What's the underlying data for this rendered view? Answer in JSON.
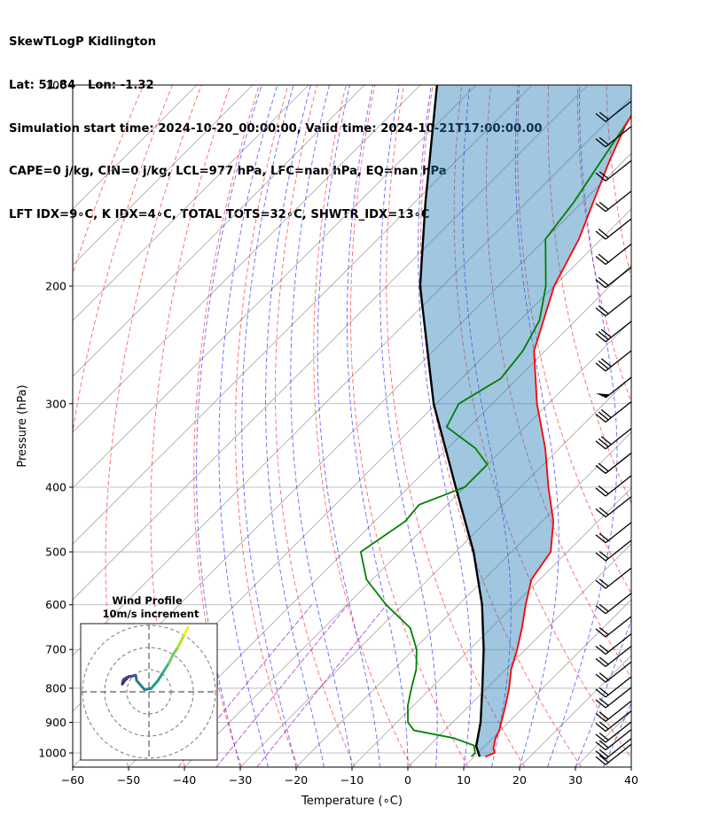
{
  "header": {
    "line1": "SkewTLogP Kidlington",
    "line2": "Lat: 51.84   Lon: -1.32",
    "line3": "Simulation start time: 2024-10-20_00:00:00, Valid time: 2024-10-21T17:00:00.00",
    "line4": "CAPE=0 j/kg, CIN=0 j/kg, LCL=977 hPa, LFC=nan hPa, EQ=nan hPa",
    "line5": "LFT IDX=9∘C, K IDX=4∘C, TOTAL TOTS=32∘C, SHWTR_IDX=13∘C"
  },
  "chart_data": {
    "type": "line",
    "subtype": "skew-T log-P",
    "xlabel": "Temperature (∘C)",
    "ylabel": "Pressure (hPa)",
    "xlim": [
      -60,
      40
    ],
    "ylim": [
      1050,
      100
    ],
    "y_scale": "log",
    "grid": true,
    "x_ticks": [
      "−60",
      "−50",
      "−40",
      "−30",
      "−20",
      "−10",
      "0",
      "10",
      "20",
      "30",
      "40"
    ],
    "y_ticks": [
      "100",
      "200",
      "300",
      "400",
      "500",
      "600",
      "700",
      "800",
      "900",
      "1000"
    ],
    "colors": {
      "temperature": "#ff0000",
      "dewpoint": "#008000",
      "parcel": "#000000",
      "cin_cape_shade": "#1f77b4",
      "dry_adiabat": "#ff0000",
      "moist_adiabat": "#0000ff",
      "mixing_ratio": "#9900cc",
      "isotherm": "#888888"
    },
    "series": [
      {
        "key": "temperature",
        "pressure": [
          1013,
          1000,
          985,
          950,
          925,
          900,
          850,
          800,
          750,
          700,
          650,
          600,
          550,
          500,
          450,
          400,
          350,
          300,
          250,
          200,
          170,
          150,
          130,
          115,
          100
        ],
        "temp": [
          12,
          13,
          12,
          10.5,
          9.8,
          8.7,
          6.5,
          4.0,
          1.0,
          -1.5,
          -4.5,
          -8.0,
          -11.5,
          -13.0,
          -18.0,
          -25.0,
          -32.5,
          -42.0,
          -52.0,
          -60.0,
          -64.0,
          -68.0,
          -72.5,
          -76.0,
          -79.0
        ]
      },
      {
        "key": "dewpoint",
        "pressure": [
          1013,
          1000,
          975,
          950,
          925,
          900,
          850,
          800,
          750,
          700,
          650,
          600,
          550,
          500,
          450,
          425,
          400,
          370,
          350,
          325,
          300,
          275,
          250,
          225,
          200,
          180,
          170,
          150,
          130,
          100
        ],
        "temp": [
          9.5,
          9.5,
          8.0,
          3.0,
          -5.5,
          -8.0,
          -11.0,
          -13.5,
          -16.0,
          -19.5,
          -24.5,
          -33.0,
          -41.0,
          -47.0,
          -44.5,
          -45.0,
          -40.0,
          -40.0,
          -45.0,
          -54.0,
          -56.0,
          -53.0,
          -54.0,
          -56.5,
          -61.5,
          -67.0,
          -70.0,
          -71.5,
          -74.0,
          -78.5
        ]
      },
      {
        "key": "parcel",
        "pressure": [
          1013,
          977,
          900,
          800,
          700,
          600,
          500,
          400,
          300,
          200,
          150,
          100
        ],
        "temp": [
          11.0,
          8.5,
          5.0,
          -0.8,
          -7.5,
          -15.8,
          -26.8,
          -41.6,
          -60.5,
          -84.0,
          -98.0,
          -117.0
        ]
      }
    ],
    "wind_barbs": {
      "pressure": [
        1010,
        990,
        960,
        935,
        900,
        870,
        830,
        800,
        760,
        720,
        690,
        650,
        600,
        550,
        500,
        470,
        430,
        400,
        370,
        340,
        310,
        285,
        260,
        235,
        215,
        195,
        180,
        165,
        150,
        135,
        120,
        110
      ],
      "full_barbs": [
        1,
        1,
        1,
        1,
        1,
        1,
        1,
        1,
        1,
        1,
        1,
        1,
        1,
        1,
        1,
        1,
        1,
        2,
        2,
        3,
        3,
        0,
        3,
        3,
        2,
        2,
        2,
        2,
        1,
        1,
        1,
        1
      ],
      "pennants": [
        0,
        0,
        0,
        0,
        0,
        0,
        0,
        0,
        0,
        0,
        0,
        0,
        0,
        0,
        0,
        0,
        0,
        0,
        0,
        0,
        0,
        1,
        0,
        0,
        0,
        0,
        0,
        0,
        0,
        0,
        0,
        0
      ]
    },
    "hodograph": {
      "title": "Wind Profile",
      "subtitle": "10m/s increment",
      "ring_speeds_ms": [
        10,
        20,
        30
      ],
      "u": [
        -9,
        -10,
        -11,
        -12,
        -11.5,
        -10,
        -6,
        -5.5,
        -2,
        1,
        4,
        6.5,
        9,
        11,
        13,
        15,
        16,
        17.5
      ],
      "v": [
        7,
        6,
        5,
        3.5,
        5.5,
        6.5,
        7.5,
        5,
        1,
        1.5,
        5,
        9,
        13,
        17,
        20,
        24,
        26,
        29
      ]
    }
  }
}
